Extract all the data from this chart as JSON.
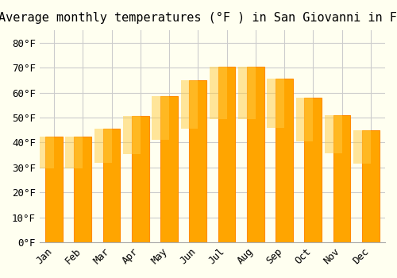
{
  "title": "Average monthly temperatures (°F ) in San Giovanni in Fiore",
  "months": [
    "Jan",
    "Feb",
    "Mar",
    "Apr",
    "May",
    "Jun",
    "Jul",
    "Aug",
    "Sep",
    "Oct",
    "Nov",
    "Dec"
  ],
  "values": [
    42.5,
    42.5,
    45.5,
    50.5,
    58.5,
    65,
    70.5,
    70.5,
    65.5,
    58,
    51,
    45
  ],
  "bar_color": "#FFA500",
  "bar_edge_color": "#FF8C00",
  "background_color": "#FFFFF0",
  "grid_color": "#cccccc",
  "ylim": [
    0,
    85
  ],
  "ytick_step": 10,
  "title_fontsize": 11,
  "tick_fontsize": 9,
  "font_family": "monospace"
}
